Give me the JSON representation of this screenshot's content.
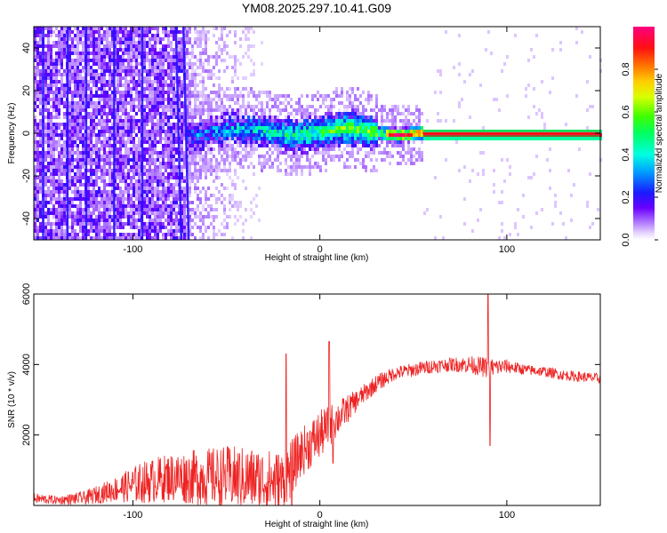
{
  "title": "YM08.2025.297.10.41.G09",
  "chart_data": [
    {
      "type": "heatmap",
      "name": "spectrogram",
      "xlabel": "Height of straight line (km)",
      "ylabel": "Frequency (Hz)",
      "xlim": [
        -153,
        150
      ],
      "ylim": [
        -50,
        50
      ],
      "xticks": [
        -100,
        0,
        100
      ],
      "yticks": [
        -40,
        -20,
        0,
        20,
        40
      ],
      "colorbar": {
        "label": "Normalized spectral amplitude",
        "range": [
          0,
          1
        ],
        "ticks": [
          "0.0",
          "0.2",
          "0.4",
          "0.6",
          "0.8"
        ],
        "tick_values": [
          0,
          0.2,
          0.4,
          0.6,
          0.8
        ]
      },
      "features": [
        {
          "x_range": [
            -153,
            -72
          ],
          "freq_range": [
            -50,
            50
          ],
          "amplitude": 0.1,
          "description": "broadband noise"
        },
        {
          "x_range": [
            -72,
            -30
          ],
          "freq_range": [
            -50,
            50
          ],
          "amplitude": 0.05,
          "description": "fading noise"
        },
        {
          "x_range": [
            -72,
            55
          ],
          "freq_center": 1.5,
          "amplitude": 0.5,
          "description": "signal band"
        },
        {
          "x_range": [
            55,
            150
          ],
          "freq_center": 0,
          "amplitude": 0.95,
          "description": "steady carrier"
        }
      ],
      "vertical_streaks_x": [
        -148,
        -135,
        -125,
        -110,
        -95,
        -77,
        -73
      ]
    },
    {
      "type": "line",
      "name": "snr",
      "xlabel": "Height of straight line (km)",
      "ylabel": "SNR (10 * v/v)",
      "xlim": [
        -153,
        150
      ],
      "ylim": [
        0,
        6000
      ],
      "xticks": [
        -100,
        0,
        100
      ],
      "yticks": [
        2000,
        4000,
        6000
      ],
      "color": "#ee2222",
      "envelope": {
        "x": [
          -153,
          -140,
          -125,
          -110,
          -95,
          -80,
          -65,
          -50,
          -35,
          -20,
          -10,
          0,
          10,
          20,
          30,
          40,
          50,
          60,
          70,
          80,
          90,
          100,
          110,
          120,
          130,
          140,
          150
        ],
        "mean": [
          200,
          150,
          220,
          450,
          650,
          800,
          800,
          800,
          750,
          650,
          1500,
          2000,
          2500,
          3000,
          3450,
          3750,
          3850,
          3950,
          4000,
          4000,
          3900,
          3950,
          3850,
          3800,
          3700,
          3650,
          3600
        ],
        "amp": [
          150,
          120,
          200,
          350,
          600,
          700,
          800,
          900,
          900,
          900,
          700,
          700,
          500,
          300,
          250,
          200,
          200,
          200,
          200,
          250,
          300,
          200,
          150,
          150,
          150,
          150,
          150
        ]
      },
      "spikes": [
        {
          "x": -18,
          "y": 4300
        },
        {
          "x": -15,
          "y": 0
        },
        {
          "x": 5,
          "y": 4650
        },
        {
          "x": 7,
          "y": 1200
        },
        {
          "x": 90,
          "y": 6000
        },
        {
          "x": 91,
          "y": 1700
        }
      ]
    }
  ]
}
